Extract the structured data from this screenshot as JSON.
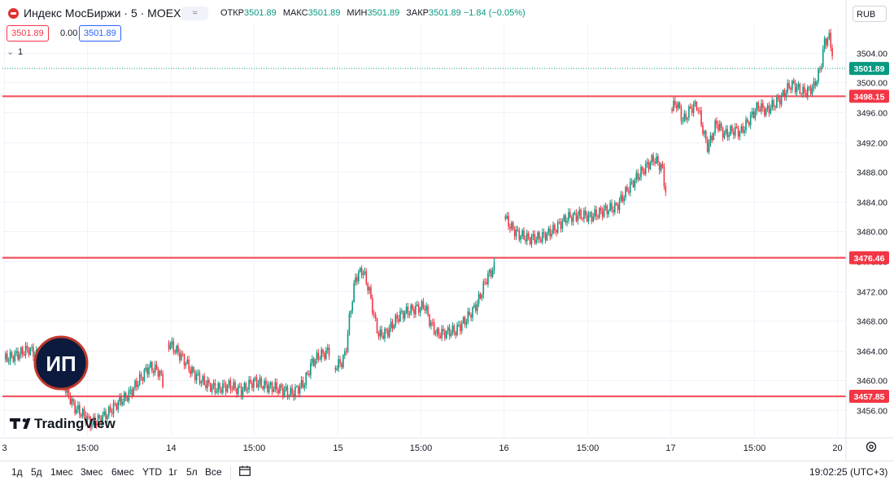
{
  "header": {
    "title": "Индекс МосБиржи · 5 · MOEX",
    "mode_icon_label": "≈",
    "ohlc": [
      {
        "label": "ОТКР",
        "value": "3501.89"
      },
      {
        "label": "МАКС",
        "value": "3501.89"
      },
      {
        "label": "МИН",
        "value": "3501.89"
      },
      {
        "label": "ЗАКР",
        "value": "3501.89 −1.84 (−0.05%)"
      }
    ],
    "sell_price": "3501.89",
    "spread": "0.00",
    "buy_price": "3501.89",
    "interval_count": "1",
    "currency": "RUB"
  },
  "watermark": {
    "brand": "TradingView",
    "badge": "ИП"
  },
  "bottom_bar": {
    "ranges": [
      "1д",
      "5д",
      "1мес",
      "3мес",
      "6мес",
      "YTD",
      "1г",
      "5л",
      "Все"
    ],
    "clock": "19:02:25 (UTC+3)"
  },
  "colors": {
    "up": "#089981",
    "down": "#f23645",
    "level": "#f23645",
    "last_price": "#089981",
    "badge_fill": "#0b1a3d",
    "badge_ring": "#c0392b"
  },
  "chart_data": {
    "type": "candlestick",
    "title": "Индекс МосБиржи · 5 · MOEX",
    "y_axis_ticks": [
      3456,
      3460,
      3464,
      3468,
      3472,
      3476,
      3480,
      3484,
      3488,
      3492,
      3496,
      3500,
      3504
    ],
    "y_tick_labels": [
      "3456.00",
      "3460.00",
      "3464.00",
      "3468.00",
      "3472.00",
      "3476.00",
      "3480.00",
      "3484.00",
      "3488.00",
      "3492.00",
      "3496.00",
      "3500.00",
      "3504.00"
    ],
    "ylim": [
      3452.5,
      3507.8
    ],
    "x_tick_labels": [
      "3",
      "15:00",
      "14",
      "15:00",
      "15",
      "15:00",
      "16",
      "15:00",
      "17",
      "15:00",
      "20"
    ],
    "x_tick_times": [
      0,
      1,
      2,
      3,
      4,
      5,
      6,
      7,
      8,
      9,
      10
    ],
    "horizontal_levels": [
      {
        "value": 3498.15,
        "label": "3498.15"
      },
      {
        "value": 3476.46,
        "label": "3476.46"
      },
      {
        "value": 3457.85,
        "label": "3457.85"
      }
    ],
    "last_price": {
      "value": 3501.89,
      "label": "3501.89"
    },
    "series": [
      {
        "segments": [
          {
            "t0": 0.0,
            "t1": 1.92,
            "path": [
              [
                0.0,
                3462.8
              ],
              [
                0.15,
                3463.4
              ],
              [
                0.3,
                3464.2
              ],
              [
                0.45,
                3462.9
              ],
              [
                0.6,
                3462.0
              ],
              [
                0.75,
                3458.5
              ],
              [
                0.85,
                3456.3
              ],
              [
                0.95,
                3455.4
              ],
              [
                1.05,
                3454.2
              ],
              [
                1.15,
                3454.8
              ],
              [
                1.25,
                3455.6
              ],
              [
                1.35,
                3456.8
              ],
              [
                1.5,
                3458.1
              ],
              [
                1.62,
                3460.0
              ],
              [
                1.74,
                3461.8
              ],
              [
                1.86,
                3461.2
              ],
              [
                1.92,
                3459.3
              ]
            ]
          },
          {
            "t0": 1.96,
            "t1": 3.92,
            "path": [
              [
                1.96,
                3465.1
              ],
              [
                2.05,
                3464.2
              ],
              [
                2.15,
                3462.9
              ],
              [
                2.25,
                3461.2
              ],
              [
                2.4,
                3459.7
              ],
              [
                2.55,
                3458.8
              ],
              [
                2.7,
                3459.3
              ],
              [
                2.85,
                3458.6
              ],
              [
                3.0,
                3459.9
              ],
              [
                3.15,
                3459.2
              ],
              [
                3.3,
                3458.9
              ],
              [
                3.45,
                3458.2
              ],
              [
                3.6,
                3459.6
              ],
              [
                3.7,
                3462.5
              ],
              [
                3.8,
                3463.4
              ],
              [
                3.92,
                3464.0
              ]
            ]
          },
          {
            "t0": 3.96,
            "t1": 5.9,
            "path": [
              [
                3.96,
                3461.7
              ],
              [
                4.05,
                3462.4
              ],
              [
                4.1,
                3463.7
              ],
              [
                4.15,
                3468.7
              ],
              [
                4.22,
                3473.8
              ],
              [
                4.3,
                3474.9
              ],
              [
                4.38,
                3472.2
              ],
              [
                4.45,
                3468.1
              ],
              [
                4.5,
                3466.0
              ],
              [
                4.6,
                3466.5
              ],
              [
                4.75,
                3468.8
              ],
              [
                4.9,
                3469.5
              ],
              [
                5.05,
                3470.0
              ],
              [
                5.12,
                3467.6
              ],
              [
                5.2,
                3466.2
              ],
              [
                5.3,
                3466.4
              ],
              [
                5.42,
                3466.7
              ],
              [
                5.55,
                3468.2
              ],
              [
                5.68,
                3470.3
              ],
              [
                5.8,
                3473.9
              ],
              [
                5.9,
                3475.4
              ]
            ]
          },
          {
            "t0": 6.0,
            "t1": 7.96,
            "path": [
              [
                6.0,
                3482.0
              ],
              [
                6.06,
                3481.0
              ],
              [
                6.1,
                3480.4
              ],
              [
                6.16,
                3479.7
              ],
              [
                6.3,
                3479.0
              ],
              [
                6.45,
                3479.2
              ],
              [
                6.6,
                3480.2
              ],
              [
                6.75,
                3481.8
              ],
              [
                6.9,
                3482.2
              ],
              [
                7.05,
                3482.0
              ],
              [
                7.2,
                3482.8
              ],
              [
                7.35,
                3483.3
              ],
              [
                7.5,
                3485.9
              ],
              [
                7.65,
                3488.0
              ],
              [
                7.8,
                3489.8
              ],
              [
                7.9,
                3488.5
              ],
              [
                7.96,
                3484.1
              ]
            ]
          },
          {
            "t0": 8.0,
            "t1": 9.96,
            "path": [
              [
                8.0,
                3496.4
              ],
              [
                8.08,
                3497.3
              ],
              [
                8.15,
                3494.8
              ],
              [
                8.25,
                3496.6
              ],
              [
                8.32,
                3497.0
              ],
              [
                8.4,
                3493.1
              ],
              [
                8.45,
                3491.2
              ],
              [
                8.55,
                3494.6
              ],
              [
                8.65,
                3493.0
              ],
              [
                8.75,
                3493.6
              ],
              [
                8.85,
                3493.4
              ],
              [
                8.95,
                3495.1
              ],
              [
                9.05,
                3496.8
              ],
              [
                9.15,
                3496.2
              ],
              [
                9.3,
                3497.6
              ],
              [
                9.45,
                3499.8
              ],
              [
                9.6,
                3498.6
              ],
              [
                9.72,
                3499.4
              ],
              [
                9.8,
                3501.9
              ],
              [
                9.85,
                3505.4
              ],
              [
                9.9,
                3506.2
              ],
              [
                9.96,
                3503.2
              ]
            ]
          }
        ]
      }
    ]
  }
}
